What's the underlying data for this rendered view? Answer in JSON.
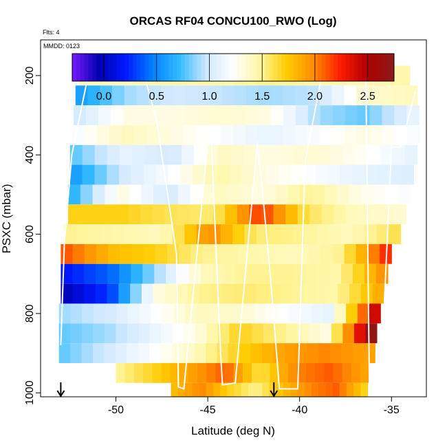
{
  "chart_data": {
    "type": "heatmap",
    "title": "ORCAS RF04 CONCU100_RWO (Log)",
    "flights_label": "Flts: 4",
    "date_label": "MMDD: 0123",
    "xlabel": "Latitude (deg N)",
    "ylabel": "PSXC (mbar)",
    "xlim": [
      -54.1,
      -33.1
    ],
    "ylim": [
      1010,
      110
    ],
    "y_inverted": true,
    "x_ticks": [
      -50,
      -45,
      -40,
      -35
    ],
    "y_ticks": [
      200,
      400,
      600,
      800,
      1000
    ],
    "colorbar": {
      "range": [
        -0.3,
        2.75
      ],
      "ticks": [
        0.0,
        0.5,
        1.0,
        1.5,
        2.0,
        2.5
      ],
      "tick_labels": [
        "0.0",
        "0.5",
        "1.0",
        "1.5",
        "2.0",
        "2.5"
      ],
      "colors": [
        "#7a1aff",
        "#0000b0",
        "#0019ff",
        "#0080ff",
        "#33bbff",
        "#cfe8ff",
        "#ffffff",
        "#fff6a0",
        "#ffcc00",
        "#ff8c00",
        "#ff1a00",
        "#b00000",
        "#8b1a1a"
      ]
    },
    "bands": [
      {
        "p_top": 175,
        "p_bot": 225,
        "x_start": -52.0,
        "x_end": -34.0,
        "values": [
          1.4,
          1.4,
          1.45,
          1.45,
          1.5,
          1.45,
          1.4,
          1.45
        ]
      },
      {
        "p_top": 225,
        "p_bot": 275,
        "x_start": -52.2,
        "x_end": -33.6,
        "values": [
          0.6,
          0.9,
          1.0,
          0.95,
          0.9,
          0.95,
          1.35,
          1.4
        ]
      },
      {
        "p_top": 275,
        "p_bot": 325,
        "x_start": -52.3,
        "x_end": -33.5,
        "values": [
          1.0,
          1.3,
          1.3,
          1.35,
          1.3,
          0.9,
          0.8,
          1.1
        ]
      },
      {
        "p_top": 325,
        "p_bot": 375,
        "x_start": -52.4,
        "x_end": -33.5,
        "values": [
          1.2,
          1.4,
          1.3,
          1.2,
          1.1,
          1.2,
          1.3,
          1.2
        ]
      },
      {
        "p_top": 375,
        "p_bot": 425,
        "x_start": -52.5,
        "x_end": -33.6,
        "values": [
          0.8,
          1.1,
          1.0,
          1.4,
          1.3,
          1.35,
          1.25,
          1.1
        ]
      },
      {
        "p_top": 425,
        "p_bot": 475,
        "x_start": -52.5,
        "x_end": -33.8,
        "values": [
          0.6,
          1.0,
          1.2,
          1.45,
          1.3,
          1.2,
          1.1,
          1.05
        ]
      },
      {
        "p_top": 475,
        "p_bot": 525,
        "x_start": -52.6,
        "x_end": -34.0,
        "values": [
          0.7,
          1.3,
          1.0,
          1.4,
          1.3,
          1.5,
          1.3,
          1.2
        ]
      },
      {
        "p_top": 525,
        "p_bot": 575,
        "x_start": -52.6,
        "x_end": -34.2,
        "values": [
          1.7,
          1.7,
          1.6,
          1.55,
          2.2,
          1.6,
          1.4,
          1.35
        ]
      },
      {
        "p_top": 575,
        "p_bot": 625,
        "x_start": -52.8,
        "x_end": -34.5,
        "values": [
          1.5,
          1.45,
          1.4,
          2.0,
          1.55,
          1.5,
          1.4,
          1.6
        ]
      },
      {
        "p_top": 625,
        "p_bot": 675,
        "x_start": -53.0,
        "x_end": -35.0,
        "values": [
          2.1,
          1.8,
          1.7,
          1.5,
          1.45,
          1.4,
          1.5,
          2.2
        ]
      },
      {
        "p_top": 675,
        "p_bot": 725,
        "x_start": -53.0,
        "x_end": -35.2,
        "values": [
          0.2,
          0.4,
          0.9,
          1.4,
          1.5,
          1.5,
          1.45,
          1.95
        ]
      },
      {
        "p_top": 725,
        "p_bot": 775,
        "x_start": -53.0,
        "x_end": -35.4,
        "values": [
          0.0,
          0.3,
          1.3,
          1.5,
          1.55,
          1.5,
          1.45,
          1.85
        ]
      },
      {
        "p_top": 775,
        "p_bot": 825,
        "x_start": -53.1,
        "x_end": -35.6,
        "values": [
          0.9,
          1.0,
          1.2,
          1.4,
          1.35,
          1.2,
          1.1,
          2.4
        ]
      },
      {
        "p_top": 825,
        "p_bot": 875,
        "x_start": -53.1,
        "x_end": -35.8,
        "values": [
          0.8,
          0.9,
          1.1,
          1.3,
          1.7,
          1.5,
          1.3,
          2.7
        ]
      },
      {
        "p_top": 875,
        "p_bot": 925,
        "x_start": -53.1,
        "x_end": -35.9,
        "values": [
          0.8,
          1.0,
          1.2,
          1.4,
          1.7,
          1.9,
          2.0,
          1.9
        ]
      },
      {
        "p_top": 925,
        "p_bot": 975,
        "x_start": -50.0,
        "x_end": -36.2,
        "values": [
          1.5,
          1.7,
          1.9,
          2.1,
          1.6,
          2.0,
          2.1,
          1.9
        ]
      },
      {
        "p_top": 975,
        "p_bot": 1010,
        "x_start": -47.0,
        "x_end": -36.3,
        "values": [
          1.8,
          2.0,
          1.7,
          1.5,
          1.8,
          2.0,
          2.1,
          1.7
        ]
      }
    ],
    "flight_track": {
      "lat": [
        -53.0,
        -52.8,
        -52.4,
        -51.4,
        -48.6,
        -47.8,
        -46.7,
        -46.6,
        -46.3,
        -45.0,
        -44.8,
        -44.3,
        -44.2,
        -43.5,
        -42.3,
        -42.0,
        -41.6,
        -41.1,
        -40.1,
        -39.7,
        -38.7,
        -38.4,
        -37.2,
        -36.4,
        -36.2,
        -35.6,
        -35.0,
        -34.5,
        -33.7
      ],
      "psxc": [
        880,
        620,
        400,
        175,
        175,
        310,
        650,
        985,
        990,
        370,
        370,
        900,
        980,
        975,
        370,
        500,
        700,
        990,
        990,
        420,
        175,
        175,
        175,
        175,
        985,
        990,
        380,
        380,
        240
      ],
      "arrows_lat": [
        -53.0,
        -41.4
      ]
    }
  }
}
